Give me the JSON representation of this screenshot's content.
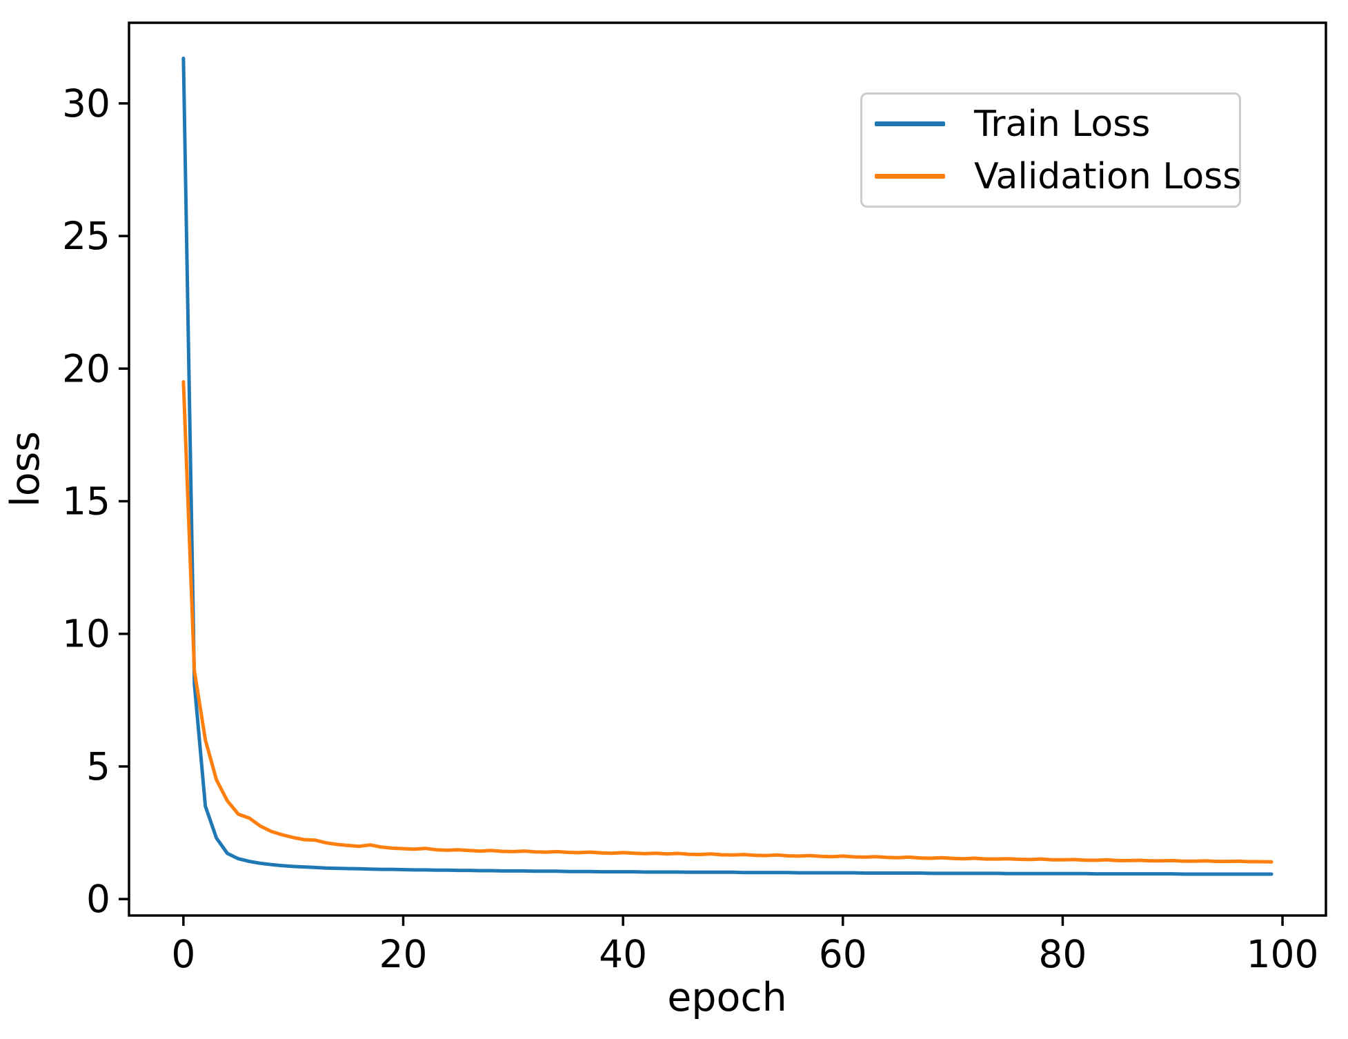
{
  "figure": {
    "background": "#ffffff",
    "title": ""
  },
  "chart_data": {
    "type": "line",
    "title": "",
    "xlabel": "epoch",
    "ylabel": "loss",
    "xlim": [
      -4.95,
      103.95
    ],
    "ylim": [
      -0.62,
      33.04
    ],
    "xticks": [
      0,
      20,
      40,
      60,
      80,
      100
    ],
    "yticks": [
      0,
      5,
      10,
      15,
      20,
      25,
      30
    ],
    "grid": false,
    "legend_position": "upper right",
    "x": [
      0,
      1,
      2,
      3,
      4,
      5,
      6,
      7,
      8,
      9,
      10,
      11,
      12,
      13,
      14,
      15,
      16,
      17,
      18,
      19,
      20,
      21,
      22,
      23,
      24,
      25,
      26,
      27,
      28,
      29,
      30,
      31,
      32,
      33,
      34,
      35,
      36,
      37,
      38,
      39,
      40,
      41,
      42,
      43,
      44,
      45,
      46,
      47,
      48,
      49,
      50,
      51,
      52,
      53,
      54,
      55,
      56,
      57,
      58,
      59,
      60,
      61,
      62,
      63,
      64,
      65,
      66,
      67,
      68,
      69,
      70,
      71,
      72,
      73,
      74,
      75,
      76,
      77,
      78,
      79,
      80,
      81,
      82,
      83,
      84,
      85,
      86,
      87,
      88,
      89,
      90,
      91,
      92,
      93,
      94,
      95,
      96,
      97,
      98,
      99
    ],
    "series": [
      {
        "name": "Train Loss",
        "color": "#1f77b4",
        "values": [
          31.7,
          8.1,
          3.5,
          2.3,
          1.72,
          1.52,
          1.42,
          1.35,
          1.3,
          1.26,
          1.23,
          1.21,
          1.19,
          1.17,
          1.16,
          1.15,
          1.14,
          1.13,
          1.12,
          1.12,
          1.11,
          1.1,
          1.1,
          1.09,
          1.09,
          1.08,
          1.08,
          1.07,
          1.07,
          1.06,
          1.06,
          1.06,
          1.05,
          1.05,
          1.05,
          1.04,
          1.04,
          1.04,
          1.03,
          1.03,
          1.03,
          1.03,
          1.02,
          1.02,
          1.02,
          1.02,
          1.01,
          1.01,
          1.01,
          1.01,
          1.01,
          1.0,
          1.0,
          1.0,
          1.0,
          1.0,
          0.99,
          0.99,
          0.99,
          0.99,
          0.99,
          0.99,
          0.98,
          0.98,
          0.98,
          0.98,
          0.98,
          0.98,
          0.97,
          0.97,
          0.97,
          0.97,
          0.97,
          0.97,
          0.97,
          0.96,
          0.96,
          0.96,
          0.96,
          0.96,
          0.96,
          0.96,
          0.96,
          0.95,
          0.95,
          0.95,
          0.95,
          0.95,
          0.95,
          0.95,
          0.95,
          0.94,
          0.94,
          0.94,
          0.94,
          0.94,
          0.94,
          0.94,
          0.94,
          0.94
        ]
      },
      {
        "name": "Validation Loss",
        "color": "#ff7f0e",
        "values": [
          19.5,
          8.6,
          6.0,
          4.5,
          3.7,
          3.2,
          3.05,
          2.75,
          2.55,
          2.42,
          2.32,
          2.24,
          2.22,
          2.12,
          2.06,
          2.02,
          1.99,
          2.04,
          1.96,
          1.92,
          1.9,
          1.88,
          1.91,
          1.86,
          1.84,
          1.86,
          1.83,
          1.81,
          1.83,
          1.8,
          1.79,
          1.81,
          1.78,
          1.77,
          1.79,
          1.76,
          1.75,
          1.77,
          1.74,
          1.73,
          1.75,
          1.73,
          1.71,
          1.73,
          1.7,
          1.72,
          1.69,
          1.68,
          1.7,
          1.67,
          1.66,
          1.68,
          1.65,
          1.64,
          1.66,
          1.63,
          1.62,
          1.64,
          1.61,
          1.6,
          1.62,
          1.59,
          1.58,
          1.6,
          1.57,
          1.56,
          1.58,
          1.55,
          1.54,
          1.56,
          1.53,
          1.52,
          1.54,
          1.51,
          1.51,
          1.52,
          1.5,
          1.49,
          1.51,
          1.48,
          1.48,
          1.49,
          1.47,
          1.46,
          1.48,
          1.45,
          1.45,
          1.46,
          1.44,
          1.44,
          1.45,
          1.43,
          1.43,
          1.44,
          1.42,
          1.42,
          1.43,
          1.41,
          1.41,
          1.4
        ]
      }
    ]
  }
}
